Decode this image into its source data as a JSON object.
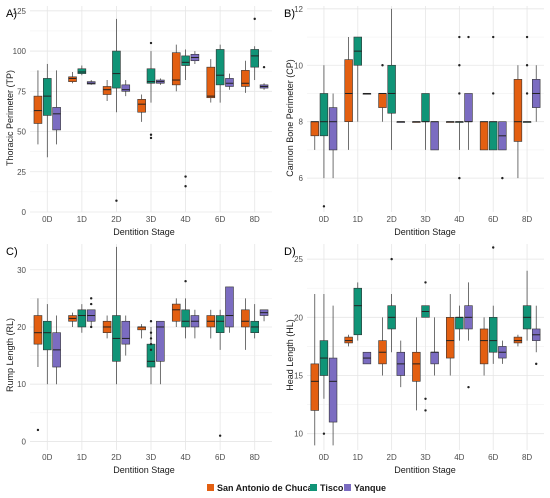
{
  "colors": {
    "San Antonio de Chuca": "#e35f11",
    "Tisco": "#109477",
    "Yanque": "#7b6cc1"
  },
  "chart_data": [
    {
      "type": "boxplot",
      "panel": "A)",
      "xlabel": "Dentition Stage",
      "ylabel": "Thoracic Perimeter (TP)",
      "categories": [
        "0D",
        "1D",
        "2D",
        "3D",
        "4D",
        "6D",
        "8D"
      ],
      "ylim": [
        0,
        128
      ],
      "yticks": [
        0,
        25,
        50,
        75,
        100,
        125
      ],
      "series": [
        {
          "name": "San Antonio de Chuca",
          "boxes": [
            {
              "min": 42,
              "q1": 55,
              "median": 63,
              "q3": 72,
              "max": 88,
              "outliers": []
            },
            {
              "min": 80,
              "q1": 81,
              "median": 83,
              "q3": 84,
              "max": 87,
              "outliers": []
            },
            {
              "min": 69,
              "q1": 73,
              "median": 76,
              "q3": 78,
              "max": 82,
              "outliers": []
            },
            {
              "min": 56,
              "q1": 62,
              "median": 67,
              "q3": 70,
              "max": 73,
              "outliers": []
            },
            {
              "min": 75,
              "q1": 79,
              "median": 82,
              "q3": 99,
              "max": 104,
              "outliers": []
            },
            {
              "min": 68,
              "q1": 71,
              "median": 72,
              "q3": 90,
              "max": 95,
              "outliers": []
            },
            {
              "min": 74,
              "q1": 78,
              "median": 80,
              "q3": 88,
              "max": 94,
              "outliers": []
            }
          ]
        },
        {
          "name": "Tisco",
          "boxes": [
            {
              "min": 34,
              "q1": 60,
              "median": 72,
              "q3": 83,
              "max": 92,
              "outliers": []
            },
            {
              "min": 85,
              "q1": 86,
              "median": 87,
              "q3": 89,
              "max": 91,
              "outliers": []
            },
            {
              "min": 62,
              "q1": 77,
              "median": 86,
              "q3": 100,
              "max": 120,
              "outliers": [
                7
              ]
            },
            {
              "min": 68,
              "q1": 80,
              "median": 81,
              "q3": 89,
              "max": 100,
              "outliers": [
                105,
                48,
                46
              ]
            },
            {
              "min": 82,
              "q1": 91,
              "median": 93,
              "q3": 97,
              "max": 101,
              "outliers": [
                16,
                22
              ]
            },
            {
              "min": 68,
              "q1": 79,
              "median": 85,
              "q3": 101,
              "max": 104,
              "outliers": []
            },
            {
              "min": 82,
              "q1": 90,
              "median": 97,
              "q3": 101,
              "max": 103,
              "outliers": [
                120
              ]
            }
          ]
        },
        {
          "name": "Yanque",
          "boxes": [
            {
              "min": 42,
              "q1": 51,
              "median": 61,
              "q3": 65,
              "max": 88,
              "outliers": []
            },
            {
              "min": 79,
              "q1": 79.5,
              "median": 80,
              "q3": 81,
              "max": 82,
              "outliers": []
            },
            {
              "min": 72,
              "q1": 75,
              "median": 76,
              "q3": 79,
              "max": 82,
              "outliers": []
            },
            {
              "min": 79,
              "q1": 80,
              "median": 81,
              "q3": 82,
              "max": 83,
              "outliers": []
            },
            {
              "min": 92,
              "q1": 94,
              "median": 96,
              "q3": 98,
              "max": 100,
              "outliers": []
            },
            {
              "min": 76,
              "q1": 78,
              "median": 80,
              "q3": 83,
              "max": 86,
              "outliers": []
            },
            {
              "min": 76,
              "q1": 77,
              "median": 78,
              "q3": 79,
              "max": 80,
              "outliers": [
                90
              ]
            }
          ]
        }
      ]
    },
    {
      "type": "boxplot",
      "panel": "B)",
      "xlabel": "Dentition Stage",
      "ylabel": "Cannon Bone Perimeter (CP)",
      "categories": [
        "0D",
        "1D",
        "2D",
        "3D",
        "4D",
        "6D",
        "8D"
      ],
      "ylim": [
        4.8,
        12.1
      ],
      "yticks": [
        6,
        8,
        10,
        12
      ],
      "series": [
        {
          "name": "San Antonio de Chuca",
          "boxes": [
            {
              "min": 7,
              "q1": 7.5,
              "median": 8,
              "q3": 8,
              "max": 8,
              "outliers": []
            },
            {
              "min": 7,
              "q1": 8,
              "median": 9,
              "q3": 10.2,
              "max": 11,
              "outliers": []
            },
            {
              "min": 8,
              "q1": 8.5,
              "median": 9,
              "q3": 9,
              "max": 9,
              "outliers": [
                10
              ]
            },
            {
              "min": 8,
              "q1": 8,
              "median": 8,
              "q3": 8,
              "max": 8,
              "outliers": []
            },
            {
              "min": 8,
              "q1": 8,
              "median": 8,
              "q3": 8,
              "max": 8,
              "outliers": []
            },
            {
              "min": 7,
              "q1": 7,
              "median": 8,
              "q3": 8,
              "max": 8,
              "outliers": []
            },
            {
              "min": 6,
              "q1": 7.3,
              "median": 8,
              "q3": 9.5,
              "max": 10,
              "outliers": []
            }
          ]
        },
        {
          "name": "Tisco",
          "boxes": [
            {
              "min": 6,
              "q1": 7.5,
              "median": 8,
              "q3": 9,
              "max": 10,
              "outliers": [
                5
              ]
            },
            {
              "min": 8,
              "q1": 10,
              "median": 10.5,
              "q3": 11,
              "max": 11,
              "outliers": []
            },
            {
              "min": 7,
              "q1": 8.3,
              "median": 9,
              "q3": 10,
              "max": 12,
              "outliers": []
            },
            {
              "min": 7,
              "q1": 8,
              "median": 8,
              "q3": 9,
              "max": 9,
              "outliers": []
            },
            {
              "min": 7,
              "q1": 8,
              "median": 8,
              "q3": 8,
              "max": 8,
              "outliers": [
                11,
                10,
                9,
                6
              ]
            },
            {
              "min": 7,
              "q1": 7,
              "median": 8,
              "q3": 8,
              "max": 8,
              "outliers": [
                11,
                9
              ]
            },
            {
              "min": 8,
              "q1": 8,
              "median": 8,
              "q3": 8,
              "max": 8,
              "outliers": [
                11,
                10,
                9
              ]
            }
          ]
        },
        {
          "name": "Yanque",
          "boxes": [
            {
              "min": 6,
              "q1": 7,
              "median": 8,
              "q3": 8.5,
              "max": 9,
              "outliers": []
            },
            {
              "min": 9,
              "q1": 9,
              "median": 9,
              "q3": 9,
              "max": 9,
              "outliers": []
            },
            {
              "min": 8,
              "q1": 8,
              "median": 8,
              "q3": 8,
              "max": 8,
              "outliers": []
            },
            {
              "min": 7,
              "q1": 7,
              "median": 8,
              "q3": 8,
              "max": 8,
              "outliers": []
            },
            {
              "min": 7,
              "q1": 8,
              "median": 8,
              "q3": 9,
              "max": 9,
              "outliers": [
                11
              ]
            },
            {
              "min": 7,
              "q1": 7,
              "median": 7.5,
              "q3": 8,
              "max": 8,
              "outliers": [
                6
              ]
            },
            {
              "min": 8,
              "q1": 8.5,
              "median": 9,
              "q3": 9.5,
              "max": 10,
              "outliers": []
            }
          ]
        }
      ]
    },
    {
      "type": "boxplot",
      "panel": "C)",
      "xlabel": "Dentition Stage",
      "ylabel": "Rump Length (RL)",
      "categories": [
        "0D",
        "1D",
        "2D",
        "3D",
        "4D",
        "6D",
        "8D"
      ],
      "ylim": [
        -1.5,
        34.5
      ],
      "yticks": [
        0,
        10,
        20,
        30
      ],
      "series": [
        {
          "name": "San Antonio de Chuca",
          "boxes": [
            {
              "min": 13,
              "q1": 17,
              "median": 19,
              "q3": 22,
              "max": 25,
              "outliers": [
                2
              ]
            },
            {
              "min": 20,
              "q1": 21,
              "median": 21.5,
              "q3": 22,
              "max": 22.5,
              "outliers": []
            },
            {
              "min": 18,
              "q1": 19,
              "median": 20,
              "q3": 21,
              "max": 22,
              "outliers": []
            },
            {
              "min": 18,
              "q1": 19.5,
              "median": 20,
              "q3": 20,
              "max": 20.5,
              "outliers": []
            },
            {
              "min": 20,
              "q1": 21,
              "median": 23,
              "q3": 24,
              "max": 25,
              "outliers": []
            },
            {
              "min": 18,
              "q1": 20,
              "median": 21,
              "q3": 22,
              "max": 23,
              "outliers": []
            },
            {
              "min": 16,
              "q1": 20,
              "median": 21,
              "q3": 23,
              "max": 25,
              "outliers": []
            }
          ]
        },
        {
          "name": "Tisco",
          "boxes": [
            {
              "min": 10,
              "q1": 16,
              "median": 19,
              "q3": 21,
              "max": 24,
              "outliers": []
            },
            {
              "min": 19,
              "q1": 20,
              "median": 22,
              "q3": 23,
              "max": 24,
              "outliers": []
            },
            {
              "min": 10,
              "q1": 14,
              "median": 18,
              "q3": 22,
              "max": 34,
              "outliers": []
            },
            {
              "min": 10,
              "q1": 13,
              "median": 14,
              "q3": 17,
              "max": 20,
              "outliers": [
                21,
                19,
                18,
                17,
                16
              ]
            },
            {
              "min": 18,
              "q1": 20,
              "median": 21,
              "q3": 23,
              "max": 25,
              "outliers": [
                28
              ]
            },
            {
              "min": 16,
              "q1": 19,
              "median": 21,
              "q3": 22,
              "max": 23,
              "outliers": [
                1
              ]
            },
            {
              "min": 18,
              "q1": 19,
              "median": 20,
              "q3": 21,
              "max": 24,
              "outliers": []
            }
          ]
        },
        {
          "name": "Yanque",
          "boxes": [
            {
              "min": 10,
              "q1": 13,
              "median": 16,
              "q3": 19,
              "max": 22,
              "outliers": []
            },
            {
              "min": 20,
              "q1": 21,
              "median": 22,
              "q3": 23,
              "max": 23,
              "outliers": [
                25,
                24,
                20
              ]
            },
            {
              "min": 15,
              "q1": 17,
              "median": 18,
              "q3": 21,
              "max": 22,
              "outliers": []
            },
            {
              "min": 10,
              "q1": 14,
              "median": 20,
              "q3": 21,
              "max": 21,
              "outliers": []
            },
            {
              "min": 18,
              "q1": 20,
              "median": 21,
              "q3": 22,
              "max": 23,
              "outliers": []
            },
            {
              "min": 19,
              "q1": 20,
              "median": 22,
              "q3": 27,
              "max": 27,
              "outliers": []
            },
            {
              "min": 21,
              "q1": 22,
              "median": 22.5,
              "q3": 23,
              "max": 23,
              "outliers": []
            }
          ]
        }
      ]
    },
    {
      "type": "boxplot",
      "panel": "D)",
      "xlabel": "Dentition Stage",
      "ylabel": "Head Length (HL)",
      "categories": [
        "0D",
        "1D",
        "2D",
        "3D",
        "4D",
        "6D",
        "8D"
      ],
      "ylim": [
        8.6,
        26.3
      ],
      "yticks": [
        10,
        15,
        20,
        25
      ],
      "series": [
        {
          "name": "San Antonio de Chuca",
          "boxes": [
            {
              "min": 9,
              "q1": 12,
              "median": 14.5,
              "q3": 16,
              "max": 22,
              "outliers": []
            },
            {
              "min": 17.5,
              "q1": 17.8,
              "median": 18,
              "q3": 18.3,
              "max": 18.5,
              "outliers": []
            },
            {
              "min": 15,
              "q1": 16,
              "median": 17,
              "q3": 18,
              "max": 20,
              "outliers": []
            },
            {
              "min": 12,
              "q1": 14.5,
              "median": 16,
              "q3": 17,
              "max": 20,
              "outliers": []
            },
            {
              "min": 15,
              "q1": 16.5,
              "median": 18,
              "q3": 20,
              "max": 22,
              "outliers": []
            },
            {
              "min": 15,
              "q1": 16,
              "median": 18,
              "q3": 19,
              "max": 20,
              "outliers": []
            },
            {
              "min": 17.5,
              "q1": 17.8,
              "median": 18,
              "q3": 18.3,
              "max": 18.5,
              "outliers": []
            }
          ]
        },
        {
          "name": "Tisco",
          "boxes": [
            {
              "min": 13,
              "q1": 15,
              "median": 16.5,
              "q3": 18,
              "max": 22,
              "outliers": [
                10
              ]
            },
            {
              "min": 18,
              "q1": 18.5,
              "median": 21,
              "q3": 22.5,
              "max": 23,
              "outliers": []
            },
            {
              "min": 17,
              "q1": 19,
              "median": 20,
              "q3": 21,
              "max": 22,
              "outliers": [
                25
              ]
            },
            {
              "min": 20,
              "q1": 20,
              "median": 20.5,
              "q3": 21,
              "max": 21,
              "outliers": [
                23,
                13,
                12
              ]
            },
            {
              "min": 18,
              "q1": 19,
              "median": 20,
              "q3": 20,
              "max": 21,
              "outliers": []
            },
            {
              "min": 16,
              "q1": 17,
              "median": 18,
              "q3": 20,
              "max": 21,
              "outliers": [
                26
              ]
            },
            {
              "min": 18,
              "q1": 19,
              "median": 20,
              "q3": 21,
              "max": 24,
              "outliers": []
            }
          ]
        },
        {
          "name": "Yanque",
          "boxes": [
            {
              "min": 9,
              "q1": 11,
              "median": 14.5,
              "q3": 16.5,
              "max": 21,
              "outliers": []
            },
            {
              "min": 16,
              "q1": 16,
              "median": 16.5,
              "q3": 17,
              "max": 17,
              "outliers": []
            },
            {
              "min": 14,
              "q1": 15,
              "median": 16,
              "q3": 17,
              "max": 18,
              "outliers": []
            },
            {
              "min": 15,
              "q1": 16,
              "median": 17,
              "q3": 17,
              "max": 20,
              "outliers": []
            },
            {
              "min": 18,
              "q1": 19,
              "median": 20,
              "q3": 21,
              "max": 23,
              "outliers": [
                14
              ]
            },
            {
              "min": 16,
              "q1": 16.5,
              "median": 17,
              "q3": 17.5,
              "max": 18,
              "outliers": []
            },
            {
              "min": 17,
              "q1": 18,
              "median": 18.5,
              "q3": 19,
              "max": 21,
              "outliers": [
                16
              ]
            }
          ]
        }
      ]
    }
  ],
  "legend": {
    "items": [
      "San Antonio de Chuca",
      "Tisco",
      "Yanque"
    ]
  }
}
